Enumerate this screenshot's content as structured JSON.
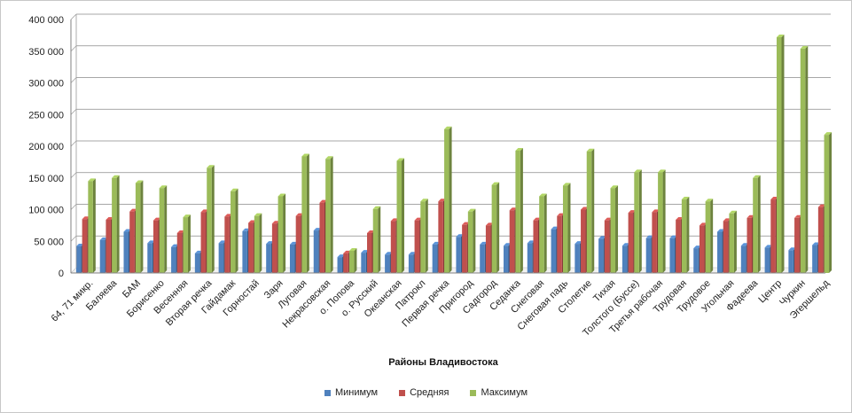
{
  "chart_data": {
    "type": "bar",
    "xlabel": "Районы Владивостока",
    "ylabel": "",
    "ylim": [
      0,
      400000
    ],
    "yticks": [
      "0",
      "50 000",
      "100 000",
      "150 000",
      "200 000",
      "250 000",
      "300 000",
      "350 000",
      "400 000"
    ],
    "grid": true,
    "legend_position": "bottom",
    "categories": [
      "64, 71 микр.",
      "Баляева",
      "БАМ",
      "Борисенко",
      "Весенняя",
      "Вторая речка",
      "Гайдамак",
      "Горностай",
      "Заря",
      "Луговая",
      "Некрасовская",
      "о. Попова",
      "о. Русский",
      "Океанская",
      "Патрокл",
      "Первая речка",
      "Пригород",
      "Садгород",
      "Седанка",
      "Снеговая",
      "Снеговая падь",
      "Столетие",
      "Тихая",
      "Толстого (Буссе)",
      "Третья рабочая",
      "Трудовая",
      "Трудовое",
      "Угольная",
      "Фадеева",
      "Центр",
      "Чуркин",
      "Эгершельд"
    ],
    "series": [
      {
        "name": "Минимум",
        "color": "#4f81bd",
        "values": [
          42000,
          52000,
          65000,
          47000,
          41000,
          31000,
          47000,
          66000,
          46000,
          45000,
          67000,
          25000,
          32000,
          29000,
          29000,
          45000,
          57000,
          45000,
          43000,
          47000,
          69000,
          46000,
          54000,
          43000,
          55000,
          55000,
          39000,
          65000,
          43000,
          40000,
          36000,
          44000
        ]
      },
      {
        "name": "Средняя",
        "color": "#c0504d",
        "values": [
          85000,
          84000,
          97000,
          83000,
          63000,
          96000,
          89000,
          79000,
          78000,
          90000,
          111000,
          31000,
          63000,
          82000,
          83000,
          113000,
          76000,
          75000,
          99000,
          83000,
          90000,
          100000,
          83000,
          95000,
          96000,
          84000,
          75000,
          82000,
          87000,
          116000,
          87000,
          104000
        ]
      },
      {
        "name": "Максимум",
        "color": "#9bbb59",
        "values": [
          145000,
          150000,
          142000,
          134000,
          88000,
          166000,
          129000,
          90000,
          121000,
          184000,
          180000,
          35000,
          101000,
          177000,
          113000,
          227000,
          97000,
          139000,
          193000,
          121000,
          138000,
          192000,
          134000,
          159000,
          159000,
          116000,
          113000,
          94000,
          150000,
          372000,
          354000,
          218000
        ]
      }
    ]
  }
}
